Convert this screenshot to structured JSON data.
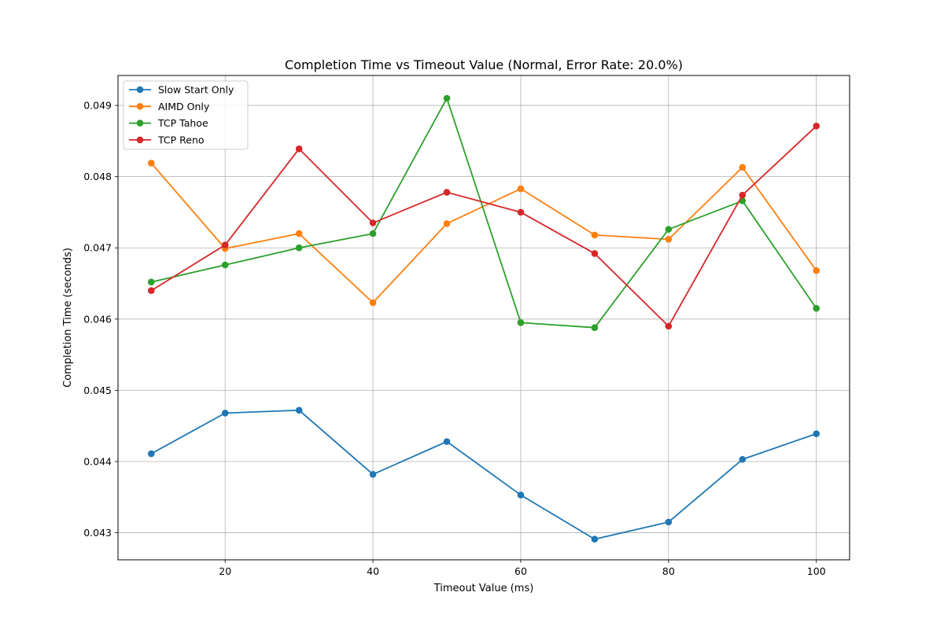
{
  "chart_data": {
    "type": "line",
    "title": "Completion Time vs Timeout Value (Normal, Error Rate: 20.0%)",
    "xlabel": "Timeout Value (ms)",
    "ylabel": "Completion Time (seconds)",
    "x": [
      10,
      20,
      30,
      40,
      50,
      60,
      70,
      80,
      90,
      100
    ],
    "xlim": [
      5.5,
      104.5
    ],
    "ylim": [
      0.04262,
      0.04942
    ],
    "xticks": [
      20,
      40,
      60,
      80,
      100
    ],
    "yticks": [
      0.043,
      0.044,
      0.045,
      0.046,
      0.047,
      0.048,
      0.049
    ],
    "xtick_labels": [
      "20",
      "40",
      "60",
      "80",
      "100"
    ],
    "ytick_labels": [
      "0.043",
      "0.044",
      "0.045",
      "0.046",
      "0.047",
      "0.048",
      "0.049"
    ],
    "grid": true,
    "legend_position": "top-left",
    "series": [
      {
        "name": "Slow Start Only",
        "color": "#1f77b4",
        "values": [
          0.04411,
          0.04468,
          0.04472,
          0.04382,
          0.04428,
          0.04353,
          0.04291,
          0.04315,
          0.04403,
          0.04439
        ]
      },
      {
        "name": "AIMD Only",
        "color": "#ff7f0e",
        "values": [
          0.04819,
          0.04699,
          0.0472,
          0.04623,
          0.04734,
          0.04783,
          0.04718,
          0.04712,
          0.04813,
          0.04668
        ]
      },
      {
        "name": "TCP Tahoe",
        "color": "#2ca02c",
        "values": [
          0.04652,
          0.04676,
          0.047,
          0.0472,
          0.0491,
          0.04595,
          0.04588,
          0.04726,
          0.04766,
          0.04615
        ]
      },
      {
        "name": "TCP Reno",
        "color": "#d62728",
        "values": [
          0.0464,
          0.04704,
          0.04839,
          0.04735,
          0.04778,
          0.0475,
          0.04692,
          0.0459,
          0.04774,
          0.04871
        ]
      }
    ]
  }
}
